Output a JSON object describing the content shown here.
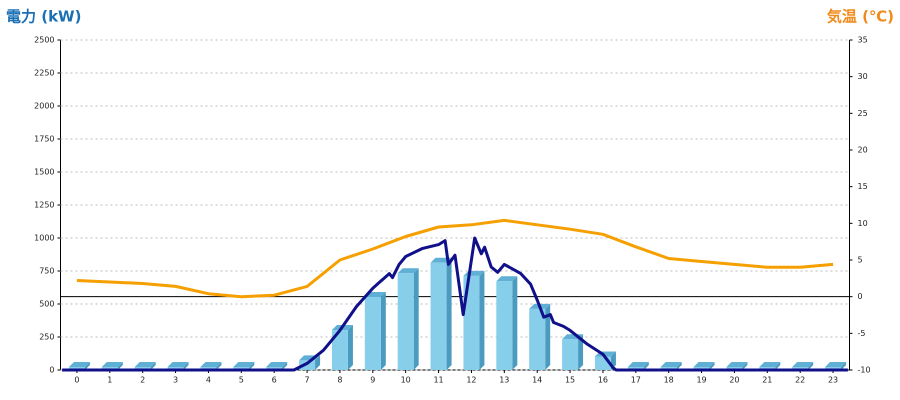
{
  "chart_data": {
    "type": "bar",
    "title": "電力 (kW)",
    "y2_title": "気温 (℃)",
    "categories": [
      "0",
      "1",
      "2",
      "3",
      "4",
      "5",
      "6",
      "7",
      "8",
      "9",
      "10",
      "11",
      "12",
      "13",
      "14",
      "15",
      "16",
      "17",
      "18",
      "19",
      "20",
      "21",
      "22",
      "23"
    ],
    "ylim": [
      0,
      2500
    ],
    "yticks": [
      0,
      250,
      500,
      750,
      1000,
      1250,
      1500,
      1750,
      2000,
      2250,
      2500
    ],
    "y2lim": [
      -10,
      35
    ],
    "y2ticks": [
      -10,
      -5,
      0,
      5,
      10,
      15,
      20,
      25,
      30,
      35
    ],
    "xlim": [
      -0.5,
      23.5
    ],
    "grid": true,
    "series": [
      {
        "type": "bar",
        "color": "#87ceeb",
        "values": [
          0,
          0,
          0,
          0,
          0,
          0,
          0,
          50,
          280,
          530,
          710,
          790,
          690,
          650,
          440,
          210,
          80,
          0,
          0,
          0,
          0,
          0,
          0,
          0
        ]
      },
      {
        "type": "line",
        "color": "#10108a",
        "x": [
          -0.45,
          6.6,
          7,
          7.5,
          8,
          8.5,
          9,
          9.5,
          9.6,
          9.8,
          10,
          10.5,
          11,
          11.2,
          11.3,
          11.5,
          11.75,
          12.1,
          12.3,
          12.4,
          12.6,
          12.8,
          13,
          13.5,
          13.8,
          14,
          14.2,
          14.4,
          14.5,
          14.8,
          15,
          15.5,
          16,
          16.3,
          16.4,
          23.45
        ],
        "values": [
          0,
          0,
          50,
          150,
          300,
          480,
          620,
          730,
          700,
          800,
          860,
          920,
          950,
          980,
          800,
          870,
          420,
          1000,
          880,
          930,
          780,
          740,
          800,
          730,
          650,
          530,
          400,
          420,
          360,
          330,
          300,
          200,
          120,
          20,
          0,
          0
        ]
      },
      {
        "type": "line",
        "axis": "y2",
        "color": "#f5a000",
        "values": [
          2.2,
          2.0,
          1.8,
          1.4,
          0.4,
          0,
          0.2,
          1.4,
          5,
          6.5,
          8.2,
          9.5,
          9.8,
          10.4,
          9.8,
          9.2,
          8.5,
          6.8,
          5.2,
          4.8,
          4.4,
          4.0,
          4.0,
          4.4
        ]
      }
    ]
  }
}
